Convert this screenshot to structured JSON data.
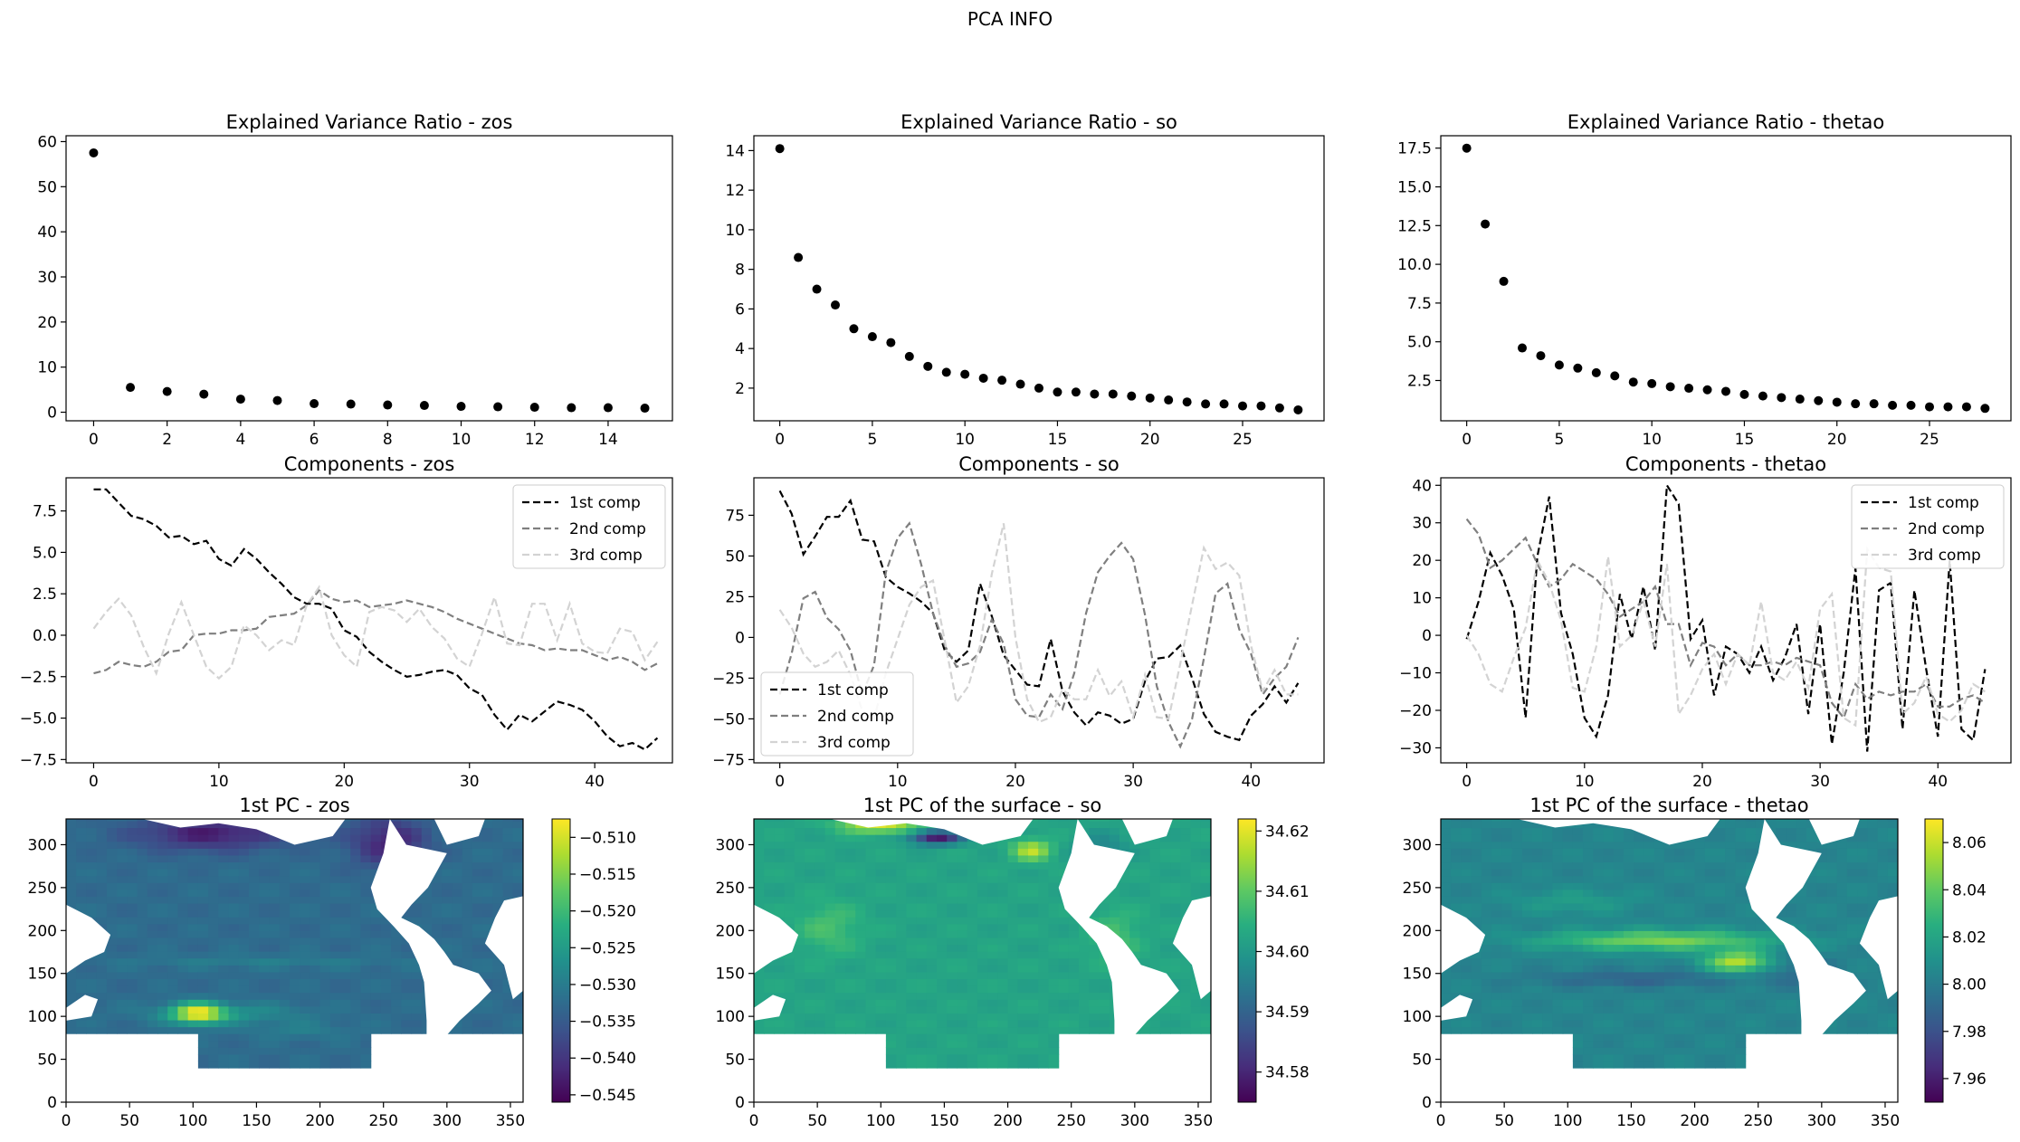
{
  "figure": {
    "suptitle": "PCA INFO"
  },
  "chart_data": [
    {
      "id": "evr-zos",
      "type": "scatter",
      "title": "Explained Variance Ratio - zos",
      "x": [
        0,
        1,
        2,
        3,
        4,
        5,
        6,
        7,
        8,
        9,
        10,
        11,
        12,
        13,
        14,
        15
      ],
      "y": [
        57.5,
        5.5,
        4.6,
        4.0,
        2.9,
        2.6,
        1.9,
        1.8,
        1.6,
        1.5,
        1.3,
        1.2,
        1.1,
        1.0,
        1.0,
        0.9
      ],
      "xlim": [
        -0.75,
        15.75
      ],
      "ylim": [
        -1.9,
        61.3
      ],
      "xticks": [
        0,
        2,
        4,
        6,
        8,
        10,
        12,
        14
      ],
      "yticks": [
        0,
        10,
        20,
        30,
        40,
        50,
        60
      ],
      "xlabel": "",
      "ylabel": ""
    },
    {
      "id": "evr-so",
      "type": "scatter",
      "title": "Explained Variance Ratio - so",
      "x": [
        0,
        1,
        2,
        3,
        4,
        5,
        6,
        7,
        8,
        9,
        10,
        11,
        12,
        13,
        14,
        15,
        16,
        17,
        18,
        19,
        20,
        21,
        22,
        23,
        24,
        25,
        26,
        27,
        28
      ],
      "y": [
        14.1,
        8.6,
        7.0,
        6.2,
        5.0,
        4.6,
        4.3,
        3.6,
        3.1,
        2.8,
        2.7,
        2.5,
        2.4,
        2.2,
        2.0,
        1.8,
        1.8,
        1.7,
        1.7,
        1.6,
        1.5,
        1.4,
        1.3,
        1.2,
        1.2,
        1.1,
        1.1,
        1.0,
        0.9
      ],
      "xlim": [
        -1.4,
        29.4
      ],
      "ylim": [
        0.35,
        14.75
      ],
      "xticks": [
        0,
        5,
        10,
        15,
        20,
        25
      ],
      "yticks": [
        2,
        4,
        6,
        8,
        10,
        12,
        14
      ],
      "xlabel": "",
      "ylabel": ""
    },
    {
      "id": "evr-thetao",
      "type": "scatter",
      "title": "Explained Variance Ratio - thetao",
      "x": [
        0,
        1,
        2,
        3,
        4,
        5,
        6,
        7,
        8,
        9,
        10,
        11,
        12,
        13,
        14,
        15,
        16,
        17,
        18,
        19,
        20,
        21,
        22,
        23,
        24,
        25,
        26,
        27,
        28
      ],
      "y": [
        17.5,
        12.6,
        8.9,
        4.6,
        4.1,
        3.5,
        3.3,
        3.0,
        2.8,
        2.4,
        2.3,
        2.1,
        2.0,
        1.9,
        1.8,
        1.6,
        1.5,
        1.4,
        1.3,
        1.2,
        1.1,
        1.0,
        1.0,
        0.9,
        0.9,
        0.8,
        0.8,
        0.8,
        0.7
      ],
      "xlim": [
        -1.4,
        29.4
      ],
      "ylim": [
        -0.1,
        18.3
      ],
      "xticks": [
        0,
        5,
        10,
        15,
        20,
        25
      ],
      "yticks": [
        2.5,
        5.0,
        7.5,
        10.0,
        12.5,
        15.0,
        17.5
      ],
      "xlabel": "",
      "ylabel": ""
    },
    {
      "id": "comp-zos",
      "type": "line",
      "title": "Components - zos",
      "xlim": [
        -2.2,
        46.2
      ],
      "ylim": [
        -7.7,
        9.5
      ],
      "xticks": [
        0,
        10,
        20,
        30,
        40
      ],
      "yticks": [
        -7.5,
        -5.0,
        -2.5,
        0.0,
        2.5,
        5.0,
        7.5
      ],
      "legend": "upper right",
      "series": [
        {
          "name": "1st comp",
          "color": "#000000",
          "values": [
            8.8,
            8.8,
            8.0,
            7.2,
            7.0,
            6.6,
            5.9,
            6.0,
            5.5,
            5.7,
            4.6,
            4.2,
            5.2,
            4.6,
            3.8,
            3.1,
            2.3,
            1.9,
            1.9,
            1.6,
            0.3,
            -0.1,
            -1.0,
            -1.6,
            -2.1,
            -2.5,
            -2.4,
            -2.2,
            -2.1,
            -2.4,
            -3.2,
            -3.6,
            -4.8,
            -5.7,
            -4.8,
            -5.2,
            -4.6,
            -4.0,
            -4.2,
            -4.5,
            -5.2,
            -6.1,
            -6.7,
            -6.5,
            -6.9,
            -6.2
          ]
        },
        {
          "name": "2nd comp",
          "color": "#7f7f7f",
          "values": [
            -2.3,
            -2.1,
            -1.6,
            -1.8,
            -1.9,
            -1.6,
            -1.0,
            -0.9,
            0.0,
            0.1,
            0.1,
            0.3,
            0.3,
            0.4,
            1.1,
            1.2,
            1.3,
            1.8,
            2.7,
            2.2,
            2.0,
            2.1,
            1.7,
            1.8,
            1.9,
            2.1,
            1.9,
            1.7,
            1.4,
            1.0,
            0.7,
            0.4,
            0.1,
            -0.2,
            -0.5,
            -0.6,
            -0.9,
            -0.8,
            -0.9,
            -0.9,
            -1.2,
            -1.5,
            -1.3,
            -1.6,
            -2.1,
            -1.7
          ]
        },
        {
          "name": "3rd comp",
          "color": "#d3d3d3",
          "values": [
            0.4,
            1.4,
            2.2,
            1.2,
            -0.7,
            -2.3,
            0.1,
            2.0,
            0.0,
            -1.9,
            -2.6,
            -1.9,
            0.6,
            0.0,
            -0.9,
            -0.3,
            -0.6,
            1.8,
            2.9,
            0.0,
            -1.2,
            -1.9,
            1.4,
            1.7,
            1.5,
            0.8,
            1.6,
            0.5,
            -0.2,
            -1.4,
            -1.9,
            0.1,
            2.3,
            -0.5,
            -0.6,
            1.9,
            1.9,
            -0.3,
            1.9,
            -0.5,
            -1.0,
            -1.1,
            0.4,
            0.2,
            -1.5,
            -0.4
          ]
        }
      ]
    },
    {
      "id": "comp-so",
      "type": "line",
      "title": "Components - so",
      "xlim": [
        -2.2,
        46.2
      ],
      "ylim": [
        -77,
        98
      ],
      "xticks": [
        0,
        10,
        20,
        30,
        40
      ],
      "yticks": [
        -75,
        -50,
        -25,
        0,
        25,
        50,
        75
      ],
      "legend": "lower left",
      "series": [
        {
          "name": "1st comp",
          "color": "#000000",
          "values": [
            90,
            76,
            51,
            62,
            74,
            74,
            84,
            60,
            59,
            37,
            31,
            27,
            22,
            15,
            -8,
            -15,
            -8,
            33,
            13,
            -11,
            -20,
            -29,
            -30,
            -1,
            -33,
            -46,
            -54,
            -46,
            -48,
            -53,
            -50,
            -27,
            -13,
            -12,
            -5,
            -25,
            -47,
            -58,
            -61,
            -63,
            -48,
            -41,
            -30,
            -40,
            -28
          ]
        },
        {
          "name": "2nd comp",
          "color": "#7f7f7f",
          "values": [
            -35,
            -10,
            24,
            28,
            12,
            5,
            -8,
            -35,
            -17,
            40,
            61,
            70,
            45,
            15,
            -5,
            -18,
            -16,
            -9,
            11,
            -4,
            -38,
            -48,
            -49,
            -35,
            -44,
            -22,
            15,
            40,
            50,
            58,
            48,
            14,
            -30,
            -52,
            -67,
            -50,
            -13,
            27,
            33,
            5,
            -10,
            -35,
            -25,
            -18,
            0
          ]
        },
        {
          "name": "3rd comp",
          "color": "#d3d3d3",
          "values": [
            17,
            6,
            -10,
            -18,
            -15,
            -8,
            -23,
            -45,
            -50,
            -22,
            -1,
            20,
            31,
            35,
            -2,
            -40,
            -30,
            -5,
            39,
            70,
            0,
            -38,
            -52,
            -49,
            -32,
            -38,
            -38,
            -20,
            -36,
            -27,
            -49,
            -23,
            -49,
            -50,
            -16,
            20,
            55,
            42,
            46,
            38,
            -5,
            -33,
            -20,
            -35,
            -35
          ]
        }
      ]
    },
    {
      "id": "comp-thetao",
      "type": "line",
      "title": "Components - thetao",
      "xlim": [
        -2.2,
        46.2
      ],
      "ylim": [
        -34,
        42
      ],
      "xticks": [
        0,
        10,
        20,
        30,
        40
      ],
      "yticks": [
        -30,
        -20,
        -10,
        0,
        10,
        20,
        30,
        40
      ],
      "legend": "upper right",
      "series": [
        {
          "name": "1st comp",
          "color": "#000000",
          "values": [
            -1,
            9,
            22,
            16,
            7,
            -22,
            21,
            37,
            6,
            -5,
            -22,
            -27,
            -16,
            11,
            -1,
            13,
            -4,
            40,
            35,
            -1,
            4,
            -16,
            -3,
            -5,
            -10,
            -3,
            -12,
            -6,
            3,
            -21,
            3,
            -29,
            -10,
            18,
            -31,
            12,
            14,
            -25,
            12,
            -9,
            -27,
            20,
            -25,
            -28,
            -9
          ]
        },
        {
          "name": "2nd comp",
          "color": "#7f7f7f",
          "values": [
            31,
            27,
            18,
            20,
            23,
            26,
            19,
            13,
            15,
            19,
            17,
            15,
            11,
            5,
            7,
            9,
            13,
            3,
            3,
            -8,
            -2,
            -3,
            -8,
            -5,
            -8,
            -8,
            -7,
            -8,
            -6,
            -7,
            -8,
            -18,
            -22,
            -13,
            -17,
            -15,
            -16,
            -15,
            -15,
            -13,
            -19,
            -19,
            -17,
            -16,
            -18
          ]
        },
        {
          "name": "3rd comp",
          "color": "#d3d3d3",
          "values": [
            0,
            -5,
            -13,
            -15,
            -6,
            2,
            20,
            14,
            4,
            -14,
            -15,
            -3,
            21,
            -3,
            0,
            9,
            -3,
            19,
            -21,
            -16,
            -9,
            -5,
            -13,
            -5,
            -8,
            9,
            -10,
            -12,
            -7,
            -14,
            7,
            11,
            -22,
            -24,
            23,
            18,
            17,
            -21,
            -18,
            -11,
            -21,
            -23,
            -20,
            -13,
            -15
          ]
        }
      ]
    },
    {
      "id": "map-zos",
      "type": "heatmap",
      "title": "1st PC - zos",
      "xlim": [
        0,
        360
      ],
      "ylim": [
        0,
        330
      ],
      "xticks": [
        0,
        50,
        100,
        150,
        200,
        250,
        300,
        350
      ],
      "yticks": [
        0,
        50,
        100,
        150,
        200,
        250,
        300
      ],
      "colorbar": {
        "min": -0.546,
        "max": -0.5075,
        "ticks": [
          -0.51,
          -0.515,
          -0.52,
          -0.525,
          -0.53,
          -0.535,
          -0.54,
          -0.545
        ],
        "labels": [
          "−0.510",
          "−0.515",
          "−0.520",
          "−0.525",
          "−0.530",
          "−0.535",
          "−0.540",
          "−0.545"
        ],
        "colormap": "viridis"
      },
      "field": {
        "base": 0.35,
        "blobs": [
          {
            "x": 120,
            "y": 100,
            "rx": 60,
            "ry": 12,
            "v": 0.5
          },
          {
            "x": 180,
            "y": 80,
            "rx": 40,
            "ry": 10,
            "v": 0.42
          },
          {
            "x": 100,
            "y": 100,
            "rx": 20,
            "ry": 12,
            "v": 0.9
          },
          {
            "x": 150,
            "y": 160,
            "rx": 110,
            "ry": 8,
            "v": 0.42
          },
          {
            "x": 110,
            "y": 310,
            "rx": 60,
            "ry": 20,
            "v": 0.08
          },
          {
            "x": 250,
            "y": 300,
            "rx": 30,
            "ry": 30,
            "v": 0.1
          }
        ]
      }
    },
    {
      "id": "map-so",
      "type": "heatmap",
      "title": "1st PC of the surface - so",
      "xlim": [
        0,
        360
      ],
      "ylim": [
        0,
        330
      ],
      "xticks": [
        0,
        50,
        100,
        150,
        200,
        250,
        300,
        350
      ],
      "yticks": [
        0,
        50,
        100,
        150,
        200,
        250,
        300
      ],
      "colorbar": {
        "min": 34.575,
        "max": 34.622,
        "ticks": [
          34.62,
          34.61,
          34.6,
          34.59,
          34.58
        ],
        "labels": [
          "34.62",
          "34.61",
          "34.60",
          "34.59",
          "34.58"
        ],
        "colormap": "viridis"
      },
      "field": {
        "base": 0.58,
        "blobs": [
          {
            "x": 95,
            "y": 320,
            "rx": 30,
            "ry": 10,
            "v": 0.95
          },
          {
            "x": 140,
            "y": 305,
            "rx": 20,
            "ry": 8,
            "v": 0.05
          },
          {
            "x": 215,
            "y": 290,
            "rx": 15,
            "ry": 12,
            "v": 0.9
          },
          {
            "x": 55,
            "y": 200,
            "rx": 25,
            "ry": 30,
            "v": 0.7
          },
          {
            "x": 280,
            "y": 190,
            "rx": 20,
            "ry": 30,
            "v": 0.7
          },
          {
            "x": 270,
            "y": 290,
            "rx": 20,
            "ry": 20,
            "v": 0.45
          }
        ]
      }
    },
    {
      "id": "map-thetao",
      "type": "heatmap",
      "title": "1st PC of the surface - thetao",
      "xlim": [
        0,
        360
      ],
      "ylim": [
        0,
        330
      ],
      "xticks": [
        0,
        50,
        100,
        150,
        200,
        250,
        300,
        350
      ],
      "yticks": [
        0,
        50,
        100,
        150,
        200,
        250,
        300
      ],
      "colorbar": {
        "min": 7.95,
        "max": 8.07,
        "ticks": [
          8.06,
          8.04,
          8.02,
          8.0,
          7.98,
          7.96
        ],
        "labels": [
          "8.06",
          "8.04",
          "8.02",
          "8.00",
          "7.98",
          "7.96"
        ],
        "colormap": "viridis"
      },
      "field": {
        "base": 0.45,
        "blobs": [
          {
            "x": 170,
            "y": 185,
            "rx": 90,
            "ry": 12,
            "v": 0.8
          },
          {
            "x": 230,
            "y": 160,
            "rx": 25,
            "ry": 12,
            "v": 0.9
          },
          {
            "x": 150,
            "y": 140,
            "rx": 80,
            "ry": 10,
            "v": 0.32
          },
          {
            "x": 100,
            "y": 230,
            "rx": 50,
            "ry": 15,
            "v": 0.55
          },
          {
            "x": 280,
            "y": 150,
            "rx": 30,
            "ry": 20,
            "v": 0.35
          }
        ]
      }
    }
  ]
}
